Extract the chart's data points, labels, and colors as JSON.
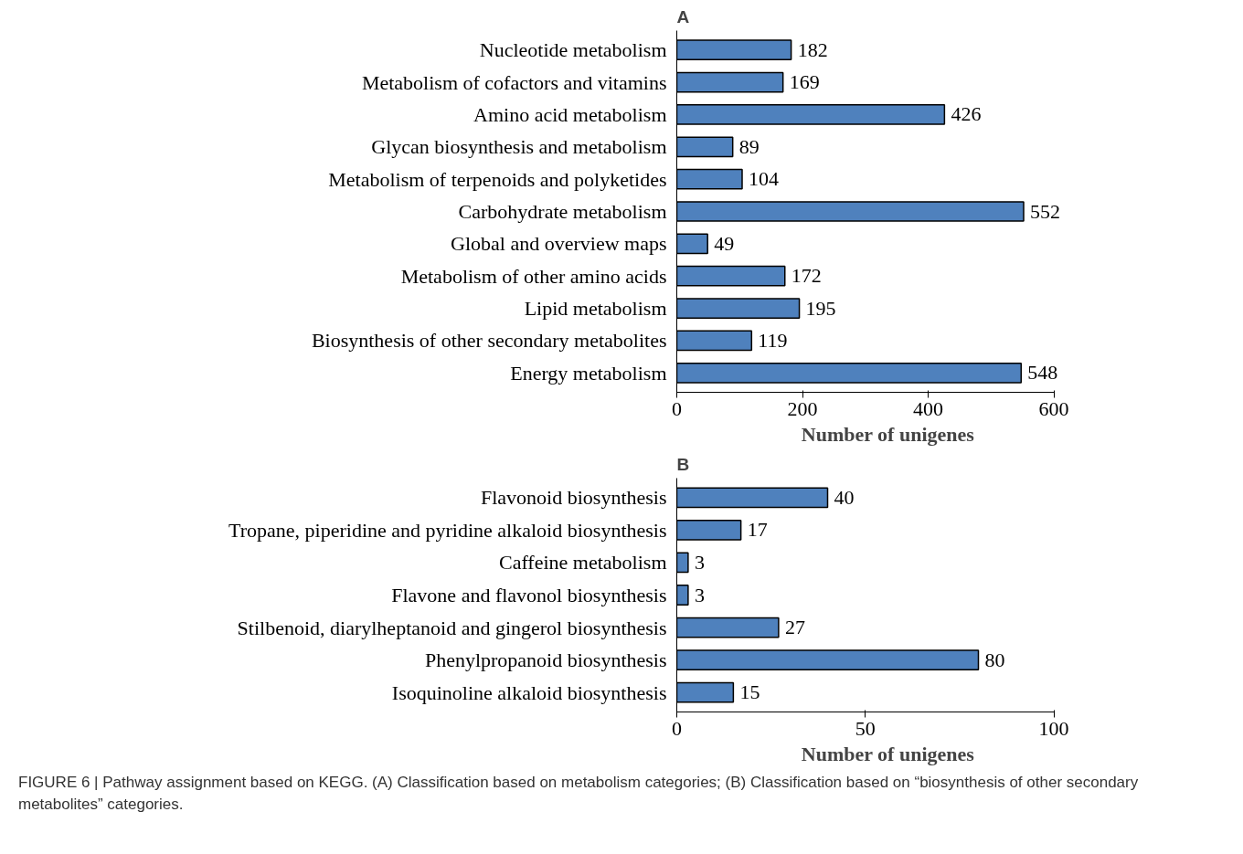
{
  "chart_data": [
    {
      "type": "bar",
      "orientation": "horizontal",
      "title": "A",
      "xlabel": "Number of unigenes",
      "categories": [
        "Nucleotide metabolism",
        "Metabolism of cofactors and vitamins",
        "Amino acid metabolism",
        "Glycan biosynthesis and metabolism",
        "Metabolism of terpenoids and polyketides",
        "Carbohydrate metabolism",
        "Global and overview maps",
        "Metabolism of other amino acids",
        "Lipid metabolism",
        "Biosynthesis of other secondary metabolites",
        "Energy metabolism"
      ],
      "values": [
        182,
        169,
        426,
        89,
        104,
        552,
        49,
        172,
        195,
        119,
        548
      ],
      "color": "#4f81bd",
      "xlim": [
        0,
        600
      ],
      "xticks": [
        0,
        200,
        400,
        600
      ],
      "data_labels": true
    },
    {
      "type": "bar",
      "orientation": "horizontal",
      "title": "B",
      "xlabel": "Number of unigenes",
      "categories": [
        "Flavonoid biosynthesis",
        "Tropane, piperidine and pyridine alkaloid biosynthesis",
        "Caffeine metabolism",
        "Flavone and flavonol biosynthesis",
        "Stilbenoid, diarylheptanoid and gingerol biosynthesis",
        "Phenylpropanoid biosynthesis",
        "Isoquinoline alkaloid biosynthesis"
      ],
      "values": [
        40,
        17,
        3,
        3,
        27,
        80,
        15
      ],
      "color": "#4f81bd",
      "xlim": [
        0,
        100
      ],
      "xticks": [
        0,
        50,
        100
      ],
      "data_labels": true,
      "annotations": [
        "FIGURE 6 | Pathway assignment based on KEGG. (A) Classification based on metabolism categories; (B) Classification based on “biosynthesis of other secondary metabolites” categories."
      ]
    }
  ]
}
